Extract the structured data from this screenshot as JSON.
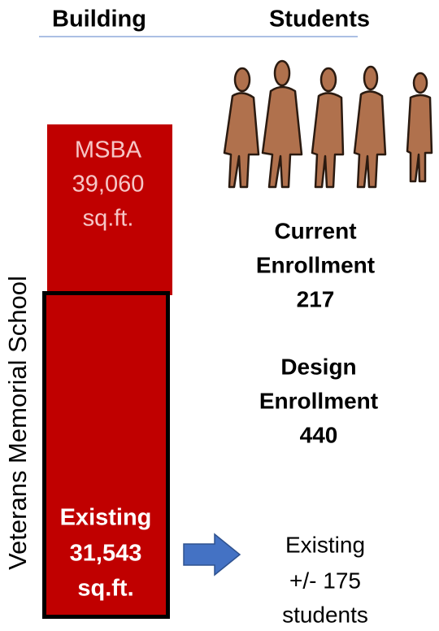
{
  "header": {
    "building": "Building",
    "students": "Students"
  },
  "side_label": "Veterans Memorial School",
  "msba": {
    "lines": [
      "MSBA",
      "39,060",
      "sq.ft."
    ]
  },
  "existing": {
    "lines": [
      "Existing",
      "31,543",
      "sq.ft."
    ]
  },
  "current_enrollment": {
    "lines": [
      "Current",
      "Enrollment",
      "217"
    ]
  },
  "design_enrollment": {
    "lines": [
      "Design",
      "Enrollment",
      "440"
    ]
  },
  "existing_students": {
    "lines": [
      "Existing",
      "+/- 175",
      "students"
    ]
  }
}
